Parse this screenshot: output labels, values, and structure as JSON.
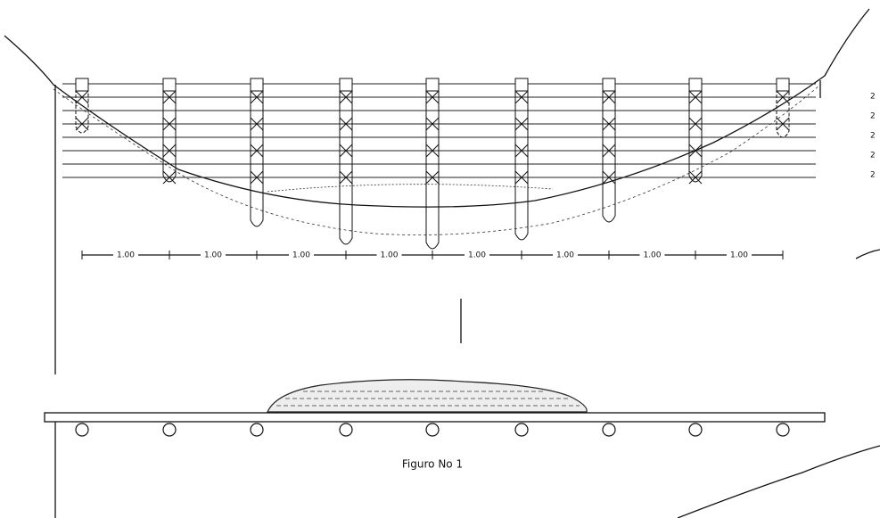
{
  "dimensions": [
    "1.00",
    "1.00",
    "1.00",
    "1.00",
    "1.00",
    "1.00",
    "1.00",
    "1.00"
  ],
  "caption": "Figuro No 1",
  "side_labels": [
    "2",
    "2",
    "2",
    "2",
    "2"
  ]
}
